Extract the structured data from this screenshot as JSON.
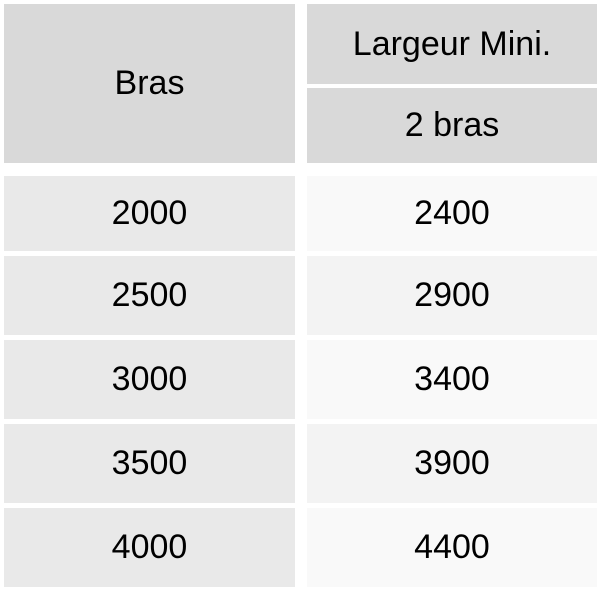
{
  "header": {
    "col1": "Bras",
    "col2_top": "Largeur Mini.",
    "col2_sub": "2 bras"
  },
  "rows": [
    {
      "bras": "2000",
      "largeur": "2400"
    },
    {
      "bras": "2500",
      "largeur": "2900"
    },
    {
      "bras": "3000",
      "largeur": "3400"
    },
    {
      "bras": "3500",
      "largeur": "3900"
    },
    {
      "bras": "4000",
      "largeur": "4400"
    }
  ]
}
